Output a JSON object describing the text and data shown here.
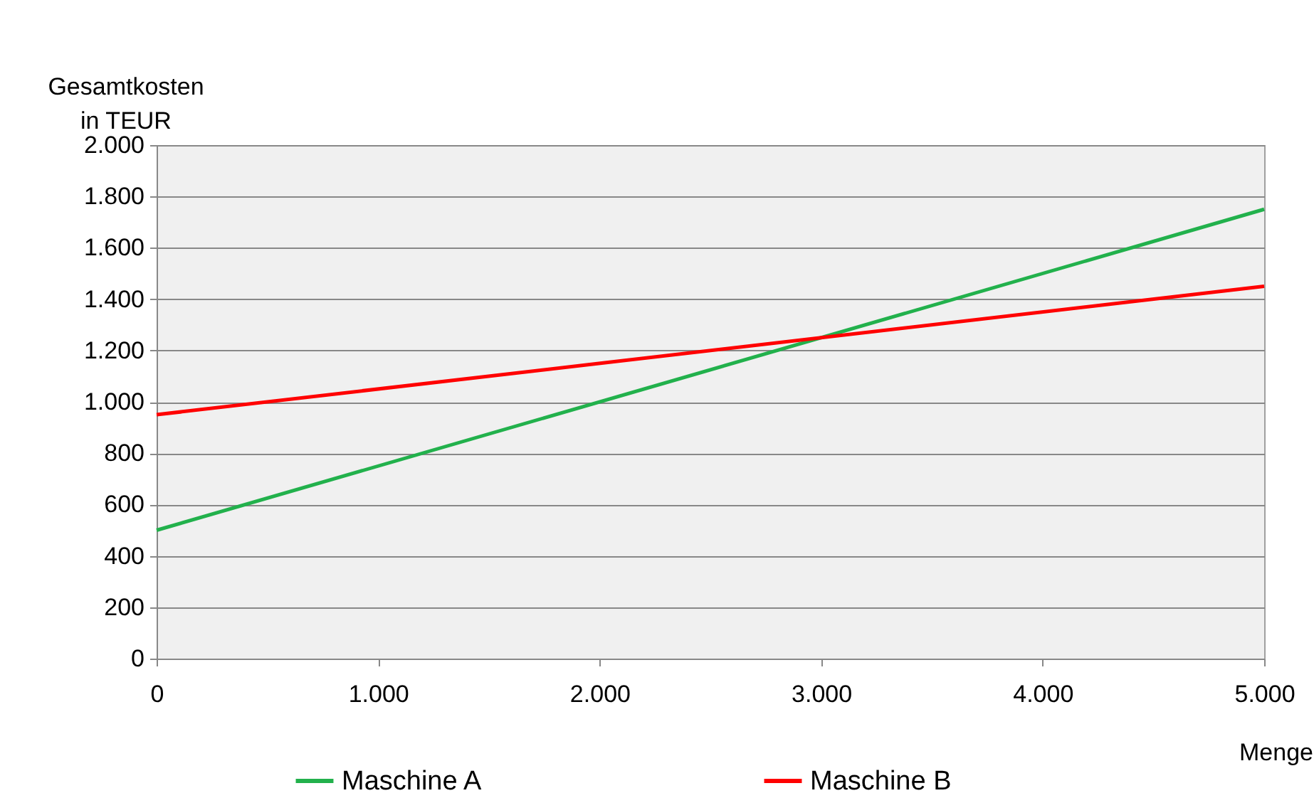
{
  "chart_data": {
    "type": "line",
    "ylabel": "Gesamtkosten\nin TEUR",
    "xlabel": "Menge",
    "x": [
      0,
      5000
    ],
    "series": [
      {
        "name": "Maschine A",
        "color": "#22b14c",
        "values": [
          500,
          1750
        ]
      },
      {
        "name": "Maschine B",
        "color": "#ff0000",
        "values": [
          950,
          1450
        ]
      }
    ],
    "xlim": [
      0,
      5000
    ],
    "xticks": [
      0,
      {
        "value": 1000,
        "label": "1.000"
      },
      {
        "value": 2000,
        "label": "2.000"
      },
      {
        "value": 3000,
        "label": "3.000"
      },
      {
        "value": 4000,
        "label": "4.000"
      },
      {
        "value": 5000,
        "label": "5.000"
      }
    ],
    "ylim": [
      0,
      2000
    ],
    "yticks": [
      0,
      200,
      400,
      600,
      800,
      {
        "value": 1000,
        "label": "1.000"
      },
      {
        "value": 1200,
        "label": "1.200"
      },
      {
        "value": 1400,
        "label": "1.400"
      },
      {
        "value": 1600,
        "label": "1.600"
      },
      {
        "value": 1800,
        "label": "1.800"
      },
      {
        "value": 2000,
        "label": "2.000"
      }
    ],
    "grid": "y",
    "legend": "bottom",
    "line_style": "solid"
  }
}
